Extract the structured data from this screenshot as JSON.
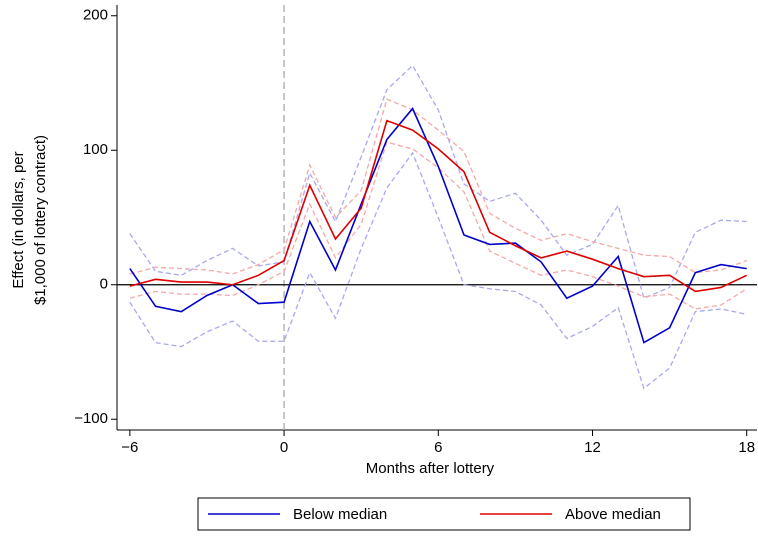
{
  "chart_data": {
    "type": "line",
    "x_label": "Months after lottery",
    "y_label": [
      "Effect (in dollars, per",
      "$1,000 of lottery contract)"
    ],
    "x": [
      -6,
      -5,
      -4,
      -3,
      -2,
      -1,
      0,
      1,
      2,
      3,
      4,
      5,
      6,
      7,
      8,
      9,
      10,
      11,
      12,
      13,
      14,
      15,
      16,
      17,
      18
    ],
    "series": [
      {
        "color": "#a8a8f0",
        "style": "dashed",
        "values": [
          38,
          10,
          7,
          18,
          27,
          14,
          17,
          83,
          47,
          95,
          145,
          163,
          130,
          75,
          62,
          68,
          48,
          22,
          30,
          59,
          -10,
          -2,
          39,
          48,
          47
        ]
      },
      {
        "color": "#a8a8f0",
        "style": "dashed",
        "values": [
          -13,
          -43,
          -46,
          -35,
          -27,
          -42,
          -42,
          9,
          -25,
          27,
          72,
          98,
          50,
          0,
          -3,
          -5,
          -15,
          -40,
          -31,
          -17,
          -77,
          -62,
          -20,
          -18,
          -22
        ]
      },
      {
        "color": "#f5a8a8",
        "style": "dashed",
        "values": [
          8,
          13,
          12,
          11,
          8,
          15,
          26,
          89,
          50,
          70,
          138,
          130,
          115,
          99,
          53,
          42,
          33,
          38,
          32,
          27,
          22,
          21,
          9,
          11,
          18
        ]
      },
      {
        "color": "#f5a8a8",
        "style": "dashed",
        "values": [
          -10,
          -5,
          -7,
          -7,
          -8,
          0,
          10,
          60,
          20,
          45,
          106,
          101,
          87,
          69,
          25,
          16,
          7,
          11,
          6,
          -1,
          -9,
          -7,
          -18,
          -15,
          -3
        ]
      },
      {
        "name": "Below median",
        "color": "#0000cc",
        "style": "solid",
        "values": [
          12,
          -16,
          -20,
          -8,
          0,
          -14,
          -13,
          47,
          11,
          60,
          108,
          131,
          88,
          37,
          30,
          31,
          17,
          -10,
          -1,
          21,
          -43,
          -32,
          9,
          15,
          12
        ]
      },
      {
        "name": "Above median",
        "color": "#dd0000",
        "style": "solid",
        "values": [
          -1,
          4,
          2,
          2,
          0,
          7,
          18,
          74,
          34,
          57,
          122,
          115,
          101,
          84,
          39,
          29,
          20,
          25,
          19,
          12,
          6,
          7,
          -5,
          -2,
          7
        ]
      }
    ],
    "xlim": [
      -6.5,
      18.4
    ],
    "ylim": [
      -108,
      208
    ],
    "xticks": [
      {
        "value": -6,
        "label": "−6"
      },
      0,
      6,
      12,
      18
    ],
    "yticks": [
      {
        "value": -100,
        "label": "−100"
      },
      0,
      100,
      200
    ],
    "vline": 0,
    "hline": 0,
    "legend": "bottom"
  }
}
